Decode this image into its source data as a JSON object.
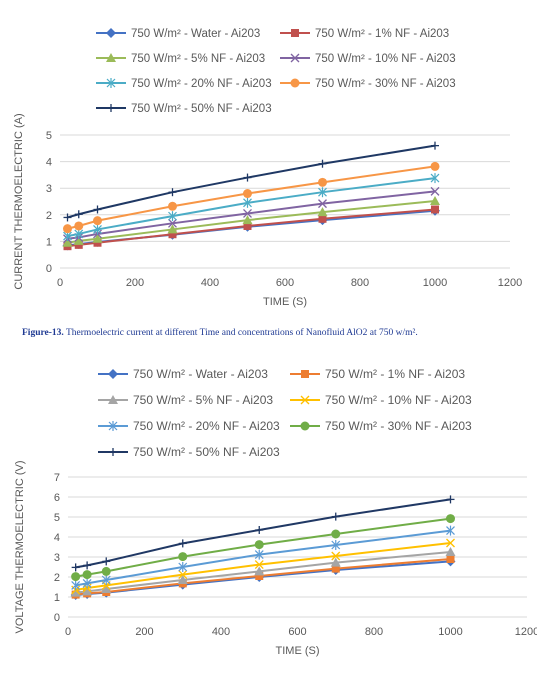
{
  "caption": {
    "label": "Figure-13.",
    "text": "Thermoelectric current at different Time and concentrations of Nanofluid AlO2 at 750 w/m²."
  },
  "chart_data": [
    {
      "type": "line",
      "xlabel": "TIME (S)",
      "ylabel": "CURRENT THERMOELECTRIC (A)",
      "xlim": [
        0,
        1200
      ],
      "ylim": [
        0,
        5
      ],
      "xticks": [
        "0",
        "200",
        "400",
        "600",
        "800",
        "1000",
        "1200"
      ],
      "yticks": [
        "0",
        "1",
        "2",
        "3",
        "4",
        "5"
      ],
      "grid": "horizontal",
      "legend": "top",
      "x": [
        20,
        50,
        100,
        300,
        500,
        700,
        1000
      ],
      "series": [
        {
          "name": "750 W/m² - Water - Ai203",
          "color": "#4472c4",
          "marker": "diamond",
          "values": [
            0.85,
            0.9,
            0.98,
            1.25,
            1.55,
            1.8,
            2.15
          ]
        },
        {
          "name": "750 W/m² - 1% NF - Ai203",
          "color": "#c0504d",
          "marker": "square",
          "values": [
            0.82,
            0.87,
            0.95,
            1.27,
            1.58,
            1.85,
            2.2
          ]
        },
        {
          "name": "750 W/m² - 5% NF - Ai203",
          "color": "#9bbb59",
          "marker": "triangle",
          "values": [
            0.95,
            1.02,
            1.1,
            1.45,
            1.8,
            2.1,
            2.52
          ]
        },
        {
          "name": "750 W/m² - 10% NF - Ai203",
          "color": "#8064a2",
          "marker": "x",
          "values": [
            1.1,
            1.15,
            1.28,
            1.68,
            2.05,
            2.42,
            2.88
          ]
        },
        {
          "name": "750 W/m² - 20% NF - Ai203",
          "color": "#4bacc6",
          "marker": "star",
          "values": [
            1.2,
            1.28,
            1.45,
            1.95,
            2.45,
            2.85,
            3.38
          ]
        },
        {
          "name": "750 W/m² - 30% NF - Ai203",
          "color": "#f79646",
          "marker": "circle",
          "values": [
            1.48,
            1.58,
            1.78,
            2.32,
            2.8,
            3.22,
            3.82
          ]
        },
        {
          "name": "750 W/m² - 50% NF - Ai203",
          "color": "#1f3864",
          "marker": "plus",
          "values": [
            1.9,
            2.02,
            2.2,
            2.85,
            3.4,
            3.92,
            4.6
          ]
        }
      ]
    },
    {
      "type": "line",
      "xlabel": "TIME (S)",
      "ylabel": "VOLTAGE THERMOELECTRIC (V)",
      "xlim": [
        0,
        1200
      ],
      "ylim": [
        0,
        7
      ],
      "xticks": [
        "0",
        "200",
        "400",
        "600",
        "800",
        "1000",
        "1200"
      ],
      "yticks": [
        "0",
        "1",
        "2",
        "3",
        "4",
        "5",
        "6",
        "7"
      ],
      "grid": "horizontal",
      "legend": "top",
      "x": [
        20,
        50,
        100,
        300,
        500,
        700,
        1000
      ],
      "series": [
        {
          "name": "750 W/m² - Water - Ai203",
          "color": "#4472c4",
          "marker": "diamond",
          "values": [
            1.1,
            1.15,
            1.22,
            1.62,
            2.0,
            2.35,
            2.78
          ]
        },
        {
          "name": "750 W/m² - 1% NF - Ai203",
          "color": "#ed7d31",
          "marker": "square",
          "values": [
            1.12,
            1.18,
            1.25,
            1.68,
            2.05,
            2.42,
            2.9
          ]
        },
        {
          "name": "750 W/m² - 5% NF - Ai203",
          "color": "#a5a5a5",
          "marker": "triangle",
          "values": [
            1.22,
            1.28,
            1.4,
            1.85,
            2.28,
            2.72,
            3.25
          ]
        },
        {
          "name": "750 W/m² - 10% NF - Ai203",
          "color": "#ffc000",
          "marker": "x",
          "values": [
            1.35,
            1.45,
            1.58,
            2.12,
            2.62,
            3.05,
            3.7
          ]
        },
        {
          "name": "750 W/m² - 20% NF - Ai203",
          "color": "#5b9bd5",
          "marker": "star",
          "values": [
            1.58,
            1.68,
            1.85,
            2.5,
            3.12,
            3.6,
            4.32
          ]
        },
        {
          "name": "750 W/m² - 30% NF - Ai203",
          "color": "#70ad47",
          "marker": "circle",
          "values": [
            2.02,
            2.12,
            2.28,
            3.02,
            3.62,
            4.15,
            4.92
          ]
        },
        {
          "name": "750 W/m² - 50% NF - Ai203",
          "color": "#203864",
          "marker": "plus",
          "values": [
            2.48,
            2.58,
            2.78,
            3.68,
            4.35,
            5.02,
            5.88
          ]
        }
      ]
    }
  ]
}
